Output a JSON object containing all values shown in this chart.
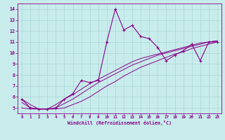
{
  "xlabel": "Windchill (Refroidissement éolien,°C)",
  "bg_color": "#c8ecec",
  "grid_color": "#b0d8d8",
  "line_color": "#880088",
  "xlim": [
    -0.5,
    23.5
  ],
  "ylim": [
    4.5,
    14.5
  ],
  "xticks": [
    0,
    1,
    2,
    3,
    4,
    5,
    6,
    7,
    8,
    9,
    10,
    11,
    12,
    13,
    14,
    15,
    16,
    17,
    18,
    19,
    20,
    21,
    22,
    23
  ],
  "yticks": [
    5,
    6,
    7,
    8,
    9,
    10,
    11,
    12,
    13,
    14
  ],
  "series_main": [
    5.8,
    5.0,
    4.9,
    4.9,
    5.0,
    5.8,
    6.3,
    7.5,
    7.3,
    7.5,
    11.0,
    14.0,
    12.1,
    12.5,
    11.5,
    11.3,
    10.5,
    9.3,
    9.8,
    10.2,
    10.8,
    9.3,
    11.0,
    11.0
  ],
  "series_lines": [
    [
      5.8,
      5.3,
      4.9,
      4.9,
      5.3,
      5.8,
      6.2,
      6.7,
      7.2,
      7.6,
      8.0,
      8.4,
      8.8,
      9.2,
      9.5,
      9.7,
      9.9,
      10.1,
      10.3,
      10.5,
      10.7,
      10.9,
      11.0,
      11.1
    ],
    [
      5.5,
      5.0,
      4.9,
      4.9,
      5.0,
      5.4,
      5.8,
      6.3,
      6.8,
      7.3,
      7.7,
      8.1,
      8.5,
      8.9,
      9.2,
      9.5,
      9.8,
      10.0,
      10.2,
      10.4,
      10.6,
      10.8,
      11.0,
      11.1
    ],
    [
      5.0,
      4.9,
      4.9,
      4.9,
      4.9,
      5.0,
      5.3,
      5.6,
      6.0,
      6.5,
      7.0,
      7.4,
      7.9,
      8.3,
      8.7,
      9.0,
      9.3,
      9.6,
      9.9,
      10.1,
      10.4,
      10.6,
      10.8,
      11.0
    ]
  ]
}
